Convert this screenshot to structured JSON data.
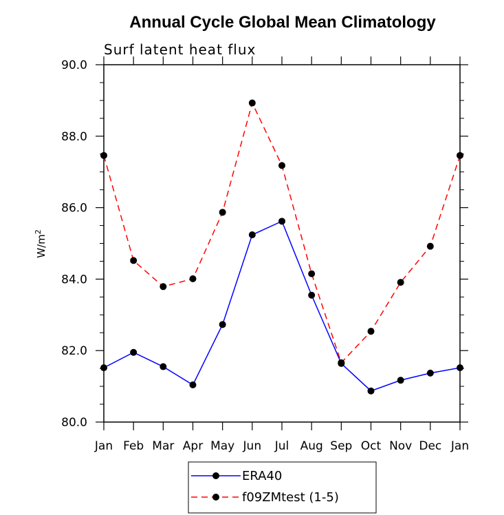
{
  "chart_data": {
    "type": "line",
    "title": "Annual Cycle Global Mean Climatology",
    "subtitle": "Surf latent heat flux",
    "ylabel": "W/m",
    "ylabel_superscript": "2",
    "xlabel": "",
    "categories": [
      "Jan",
      "Feb",
      "Mar",
      "Apr",
      "May",
      "Jun",
      "Jul",
      "Aug",
      "Sep",
      "Oct",
      "Nov",
      "Dec",
      "Jan"
    ],
    "ylim": [
      80.0,
      90.0
    ],
    "yticks": [
      80.0,
      82.0,
      84.0,
      86.0,
      88.0,
      90.0
    ],
    "ytick_labels": [
      "80.0",
      "82.0",
      "84.0",
      "86.0",
      "88.0",
      "90.0"
    ],
    "grid": false,
    "legend_position": "bottom",
    "series": [
      {
        "name": "ERA40",
        "color": "#0000ff",
        "dash": "solid",
        "marker": "filled-circle",
        "values": [
          81.52,
          81.95,
          81.55,
          81.04,
          82.73,
          85.24,
          85.62,
          83.55,
          81.64,
          80.87,
          81.17,
          81.37,
          81.52
        ]
      },
      {
        "name": "f09ZMtest (1-5)",
        "color": "#ff0000",
        "dash": "dashed",
        "marker": "filled-circle",
        "values": [
          87.46,
          84.52,
          83.79,
          84.01,
          85.87,
          88.93,
          87.18,
          84.15,
          81.66,
          82.54,
          83.91,
          84.92,
          87.46
        ]
      }
    ]
  }
}
